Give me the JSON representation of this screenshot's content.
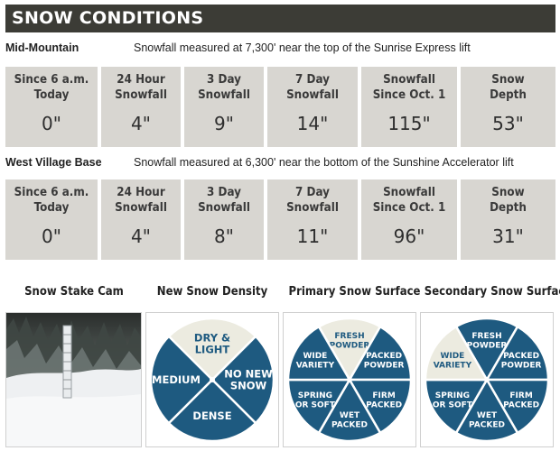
{
  "header": {
    "title": "SNOW CONDITIONS"
  },
  "locations": [
    {
      "name": "Mid-Mountain",
      "description": "Snowfall measured at 7,300' near the top of the Sunrise Express lift",
      "stats": [
        {
          "label": "Since 6 a.m.\nToday",
          "value": "0\""
        },
        {
          "label": "24 Hour\nSnowfall",
          "value": "4\""
        },
        {
          "label": "3 Day\nSnowfall",
          "value": "9\""
        },
        {
          "label": "7 Day\nSnowfall",
          "value": "14\""
        },
        {
          "label": "Snowfall\nSince Oct. 1",
          "value": "115\""
        },
        {
          "label": "Snow\nDepth",
          "value": "53\""
        }
      ]
    },
    {
      "name": "West Village Base",
      "description": "Snowfall measured at 6,300' near the bottom of the Sunshine Accelerator lift",
      "stats": [
        {
          "label": "Since 6 a.m.\nToday",
          "value": "0\""
        },
        {
          "label": "24 Hour\nSnowfall",
          "value": "4\""
        },
        {
          "label": "3 Day\nSnowfall",
          "value": "8\""
        },
        {
          "label": "7 Day\nSnowfall",
          "value": "11\""
        },
        {
          "label": "Snowfall\nSince Oct. 1",
          "value": "96\""
        },
        {
          "label": "Snow\nDepth",
          "value": "31\""
        }
      ]
    }
  ],
  "panels": {
    "cam_title": "Snow Stake Cam",
    "density": {
      "title": "New Snow Density",
      "segments": [
        "DRY &\nLIGHT",
        "NO NEW\nSNOW",
        "DENSE",
        "MEDIUM"
      ],
      "selected": "DRY &\nLIGHT"
    },
    "primary": {
      "title": "Primary Snow Surface",
      "segments": [
        "FRESH\nPOWDER",
        "PACKED\nPOWDER",
        "FIRM\nPACKED",
        "WET\nPACKED",
        "SPRING\nOR SOFT",
        "WIDE\nVARIETY"
      ],
      "selected": "FRESH\nPOWDER"
    },
    "secondary": {
      "title": "Secondary Snow Surface",
      "segments": [
        "FRESH\nPOWDER",
        "PACKED\nPOWDER",
        "FIRM\nPACKED",
        "WET\nPACKED",
        "SPRING\nOR SOFT",
        "WIDE\nVARIETY"
      ],
      "selected": "WIDE\nVARIETY"
    }
  },
  "colors": {
    "wheel_blue": "#1e5a80",
    "wheel_selected": "#ecebe0",
    "selected_text": "#1e5a80",
    "header_bg": "#3c3c36",
    "cell_bg": "#d8d6d1"
  }
}
